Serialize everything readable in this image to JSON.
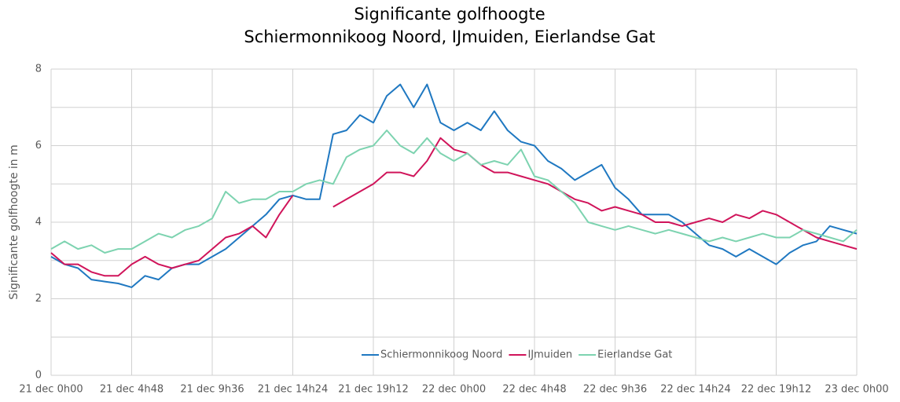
{
  "chart_data": {
    "type": "line",
    "title": "Significante golfhoogte",
    "subtitle": "Schiermonnikoog Noord, IJmuiden, Eierlandse Gat",
    "y_label": "Significante golfhoogte in m",
    "categories": [
      "21 dec 0h00",
      null,
      null,
      null,
      null,
      null,
      "21 dec 4h48",
      null,
      null,
      null,
      null,
      null,
      "21 dec 9h36",
      null,
      null,
      null,
      null,
      null,
      "21 dec 14h24",
      null,
      null,
      null,
      null,
      null,
      "21 dec 19h12",
      null,
      null,
      null,
      null,
      null,
      "22 dec 0h00",
      null,
      null,
      null,
      null,
      null,
      "22 dec 4h48",
      null,
      null,
      null,
      null,
      null,
      "22 dec 9h36",
      null,
      null,
      null,
      null,
      null,
      "22 dec 14h24",
      null,
      null,
      null,
      null,
      null,
      "22 dec 19h12",
      null,
      null,
      null,
      null,
      null,
      "23 dec 0h00"
    ],
    "series": [
      {
        "name": "Schiermonnikoog Noord",
        "color": "#1f78c1",
        "values": [
          3.1,
          2.9,
          2.8,
          2.5,
          2.45,
          2.4,
          2.3,
          2.6,
          2.5,
          2.8,
          2.9,
          2.9,
          3.1,
          3.3,
          3.6,
          3.9,
          4.2,
          4.6,
          4.7,
          4.6,
          4.6,
          6.3,
          6.4,
          6.8,
          6.6,
          7.3,
          7.6,
          7.0,
          7.6,
          6.6,
          6.4,
          6.6,
          6.4,
          6.9,
          6.4,
          6.1,
          6.0,
          5.6,
          5.4,
          5.1,
          5.3,
          5.5,
          4.9,
          4.6,
          4.2,
          4.2,
          4.2,
          4.0,
          3.7,
          3.4,
          3.3,
          3.1,
          3.3,
          3.1,
          2.9,
          3.2,
          3.4,
          3.5,
          3.9,
          3.8,
          3.7
        ]
      },
      {
        "name": "IJmuiden",
        "color": "#d0145a",
        "values": [
          3.2,
          2.9,
          2.9,
          2.7,
          2.6,
          2.6,
          2.9,
          3.1,
          2.9,
          2.8,
          2.9,
          3.0,
          3.3,
          3.6,
          3.7,
          3.9,
          3.6,
          4.2,
          4.7,
          null,
          null,
          4.4,
          4.6,
          4.8,
          5.0,
          5.3,
          5.3,
          5.2,
          5.6,
          6.2,
          5.9,
          5.8,
          5.5,
          5.3,
          5.3,
          5.2,
          5.1,
          5.0,
          4.8,
          4.6,
          4.5,
          4.3,
          4.4,
          4.3,
          4.2,
          4.0,
          4.0,
          3.9,
          4.0,
          4.1,
          4.0,
          4.2,
          4.1,
          4.3,
          4.2,
          4.0,
          3.8,
          3.6,
          3.5,
          3.4,
          3.3
        ]
      },
      {
        "name": "Eierlandse Gat",
        "color": "#7dd3b0",
        "values": [
          3.3,
          3.5,
          3.3,
          3.4,
          3.2,
          3.3,
          3.3,
          3.5,
          3.7,
          3.6,
          3.8,
          3.9,
          4.1,
          4.8,
          4.5,
          4.6,
          4.6,
          4.8,
          4.8,
          5.0,
          5.1,
          5.0,
          5.7,
          5.9,
          6.0,
          6.4,
          6.0,
          5.8,
          6.2,
          5.8,
          5.6,
          5.8,
          5.5,
          5.6,
          5.5,
          5.9,
          5.2,
          5.1,
          4.8,
          4.5,
          4.0,
          3.9,
          3.8,
          3.9,
          3.8,
          3.7,
          3.8,
          3.7,
          3.6,
          3.5,
          3.6,
          3.5,
          3.6,
          3.7,
          3.6,
          3.6,
          3.8,
          3.7,
          3.6,
          3.5,
          3.8
        ]
      }
    ],
    "ylim": [
      0,
      8
    ],
    "yticks": [
      0,
      2,
      4,
      6,
      8
    ],
    "y_minor_ticks": [
      1,
      3,
      5,
      7
    ],
    "grid": true,
    "legend": "bottom"
  }
}
